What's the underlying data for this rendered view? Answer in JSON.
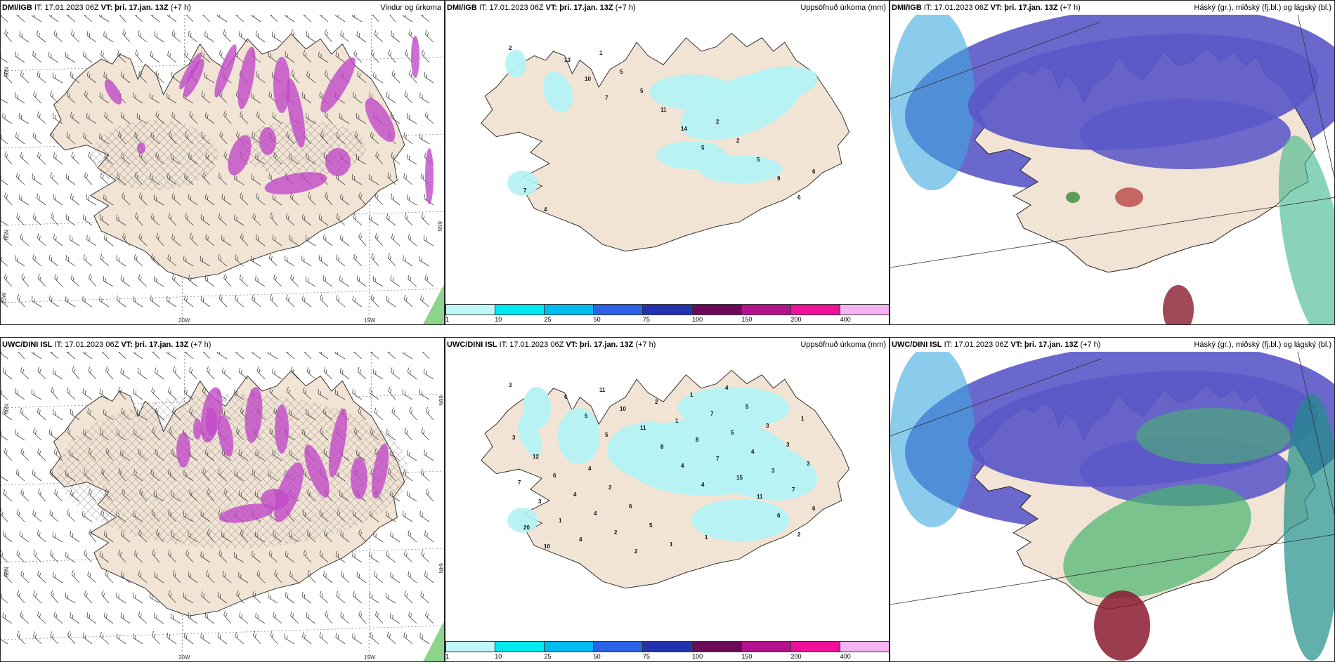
{
  "panels": [
    {
      "source": "DMI/IGB",
      "it": "IT: 17.01.2023 06Z",
      "vt_label": "VT:",
      "vt": "þri. 17.jan. 13Z",
      "lead": "(+7 h)",
      "title": "Vindur og úrkoma"
    },
    {
      "source": "DMI/IGB",
      "it": "IT: 17.01.2023 06Z",
      "vt_label": "VT:",
      "vt": "þri. 17.jan. 13Z",
      "lead": "(+7 h)",
      "title": "Uppsöfnuð úrkoma (mm)"
    },
    {
      "source": "DMI/IGB",
      "it": "IT: 17.01.2023 06Z",
      "vt_label": "VT:",
      "vt": "þri. 17.jan. 13Z",
      "lead": "(+7 h)",
      "title": "Háský (gr.), miðský (fj.bl.) og lágský (bl.)"
    },
    {
      "source": "UWC/DINI ISL",
      "it": "IT: 17.01.2023 06Z",
      "vt_label": "VT:",
      "vt": "þri. 17.jan. 13Z",
      "lead": "(+7 h)",
      "title": ""
    },
    {
      "source": "UWC/DINI ISL",
      "it": "IT: 17.01.2023 06Z",
      "vt_label": "VT:",
      "vt": "þri. 17.jan. 13Z",
      "lead": "(+7 h)",
      "title": "Uppsöfnuð úrkoma (mm)"
    },
    {
      "source": "UWC/DINI ISL",
      "it": "IT: 17.01.2023 06Z",
      "vt_label": "VT:",
      "vt": "þri. 17.jan. 13Z",
      "lead": "(+7 h)",
      "title": "Háský (gr.), miðský (fj.bl.) og lágský (bl.)"
    }
  ],
  "wind_axes": {
    "lon_left": "20W",
    "lon_right": "15W",
    "lat_top": "66N",
    "lat_mid": "65N",
    "lat_low": "64N",
    "lon_corner": "25W"
  },
  "legend": {
    "ticks": [
      "1",
      "10",
      "25",
      "50",
      "75",
      "100",
      "150",
      "200",
      "400"
    ],
    "colors": [
      "#bff7fb",
      "#00e8f0",
      "#00bcef",
      "#2a63e6",
      "#2432b0",
      "#6b0a58",
      "#b4128c",
      "#f0119a",
      "#f4b3f1"
    ]
  },
  "precip_top_values": [
    "2",
    "7",
    "5",
    "6",
    "10",
    "14",
    "9",
    "13",
    "11",
    "5",
    "4",
    "5",
    "2",
    "7",
    "5",
    "2",
    "6",
    "1"
  ],
  "precip_bottom_values": [
    "3",
    "5",
    "4",
    "2",
    "5",
    "4",
    "6",
    "6",
    "8",
    "11",
    "10",
    "11",
    "15",
    "20",
    "10",
    "7",
    "6",
    "11",
    "8",
    "7",
    "4",
    "1",
    "3",
    "1",
    "2",
    "4",
    "3",
    "2",
    "5",
    "7",
    "2",
    "7",
    "3",
    "4",
    "1",
    "3",
    "4",
    "1",
    "3",
    "6",
    "5",
    "5",
    "12",
    "6",
    "4",
    "3",
    "2",
    "1",
    "1",
    "4"
  ],
  "colors": {
    "land": "#f2e4d4",
    "precip_light": "#b4f2f4",
    "cloud_high": "#5b58c8",
    "cloud_low": "#47b56e",
    "cloud_mid": "#3ea8e0",
    "wind_purple": "#c04ac8"
  }
}
